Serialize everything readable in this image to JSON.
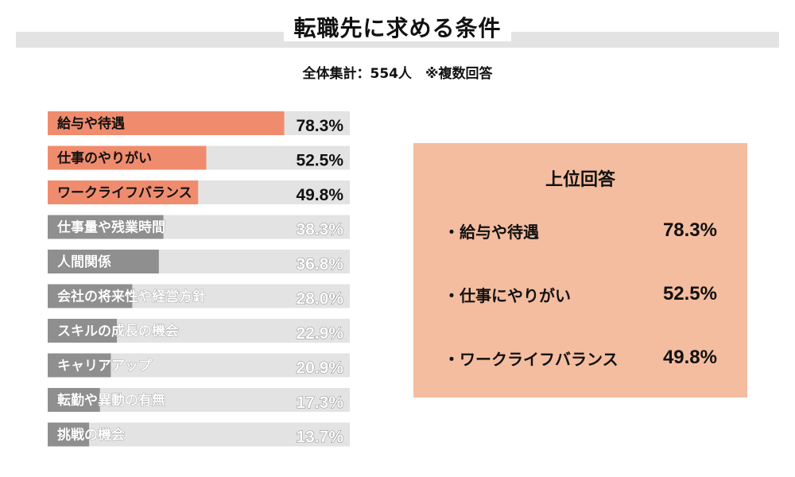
{
  "title": "転職先に求める条件",
  "subtitle": "全体集計：554人　※複数回答",
  "colors": {
    "highlight": "#f08c6e",
    "normal": "#8f8f8f",
    "track": "#e3e3e3",
    "box": "#f4bd9f"
  },
  "chart_data": {
    "type": "bar",
    "orientation": "horizontal",
    "xlim": [
      0,
      100
    ],
    "categories": [
      "給与や待遇",
      "仕事のやりがい",
      "ワークライフバランス",
      "仕事量や残業時間",
      "人間関係",
      "会社の将来性や経営方針",
      "スキルの成長の機会",
      "キャリアアップ",
      "転勤や異動の有無",
      "挑戦の機会"
    ],
    "values": [
      78.3,
      52.5,
      49.8,
      38.3,
      36.8,
      28.0,
      22.9,
      20.9,
      17.3,
      13.7
    ],
    "value_labels": [
      "78.3%",
      "52.5%",
      "49.8%",
      "38.3%",
      "36.8%",
      "28.0%",
      "22.9%",
      "20.9%",
      "17.3%",
      "13.7%"
    ],
    "highlighted_count": 3
  },
  "top_box": {
    "title": "上位回答",
    "items": [
      {
        "label": "・給与や待遇",
        "value": "78.3%"
      },
      {
        "label": "・仕事にやりがい",
        "value": "52.5%"
      },
      {
        "label": "・ワークライフバランス",
        "value": "49.8%"
      }
    ]
  }
}
